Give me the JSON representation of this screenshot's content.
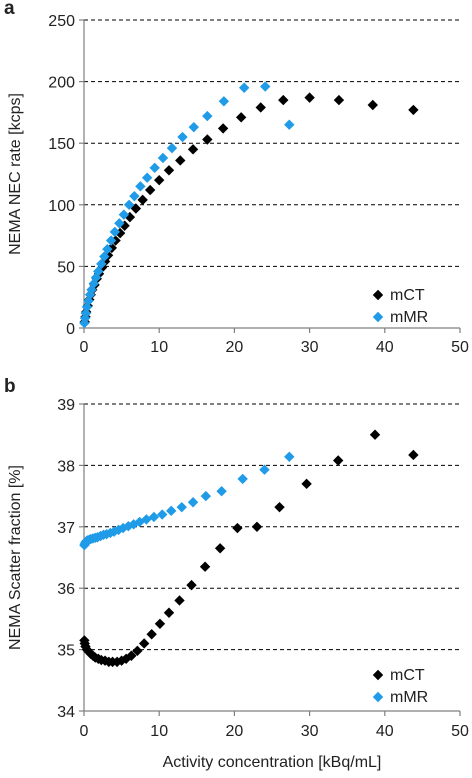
{
  "chart_data": [
    {
      "type": "scatter",
      "panel_label": "a",
      "xlabel": "",
      "ylabel": "NEMA NEC rate [kcps]",
      "xlim": [
        0,
        50
      ],
      "ylim": [
        0,
        250
      ],
      "xticks": [
        "0",
        "10",
        "20",
        "30",
        "40",
        "50"
      ],
      "yticks": [
        "0",
        "50",
        "100",
        "150",
        "200",
        "250"
      ],
      "grid": "horizontal dashed",
      "legend_position": "bottom-right",
      "series": [
        {
          "name": "mCT",
          "color": "#000000",
          "marker": "diamond",
          "x": [
            0.1,
            0.2,
            0.3,
            0.5,
            0.7,
            0.9,
            1.1,
            1.4,
            1.7,
            2.0,
            2.4,
            2.8,
            3.2,
            3.7,
            4.2,
            4.8,
            5.4,
            6.1,
            6.9,
            7.8,
            8.8,
            10.0,
            11.3,
            12.8,
            14.5,
            16.4,
            18.5,
            20.9,
            23.5,
            26.5,
            30.0,
            33.9,
            38.4,
            43.8
          ],
          "y": [
            5,
            9,
            13,
            18,
            23,
            27,
            31,
            35,
            40,
            44,
            49,
            54,
            59,
            65,
            71,
            77,
            83,
            90,
            97,
            104,
            112,
            120,
            128,
            136,
            145,
            153,
            162,
            171,
            179,
            185,
            187,
            185,
            181,
            177
          ]
        },
        {
          "name": "mMR",
          "color": "#1f9be8",
          "marker": "diamond",
          "x": [
            0.05,
            0.15,
            0.25,
            0.4,
            0.6,
            0.8,
            1.0,
            1.3,
            1.6,
            1.9,
            2.3,
            2.7,
            3.1,
            3.6,
            4.1,
            4.7,
            5.3,
            6.0,
            6.7,
            7.5,
            8.4,
            9.4,
            10.5,
            11.7,
            13.1,
            14.6,
            16.4,
            18.6,
            21.3,
            24.1,
            27.3
          ],
          "y": [
            4,
            8,
            12,
            17,
            22,
            27,
            31,
            36,
            41,
            46,
            52,
            58,
            64,
            71,
            78,
            85,
            92,
            100,
            107,
            115,
            122,
            130,
            138,
            146,
            155,
            163,
            172,
            184,
            195,
            196,
            165
          ]
        }
      ]
    },
    {
      "type": "scatter",
      "panel_label": "b",
      "xlabel": "Activity concentration [kBq/mL]",
      "ylabel": "NEMA Scatter fraction [%]",
      "xlim": [
        0,
        50
      ],
      "ylim": [
        34,
        39
      ],
      "xticks": [
        "0",
        "10",
        "20",
        "30",
        "40",
        "50"
      ],
      "yticks": [
        "34",
        "35",
        "36",
        "37",
        "38",
        "39"
      ],
      "grid": "horizontal dashed",
      "legend_position": "bottom-right",
      "series": [
        {
          "name": "mCT",
          "color": "#000000",
          "marker": "diamond",
          "x": [
            0.05,
            0.1,
            0.2,
            0.4,
            0.6,
            0.9,
            1.2,
            1.5,
            1.9,
            2.3,
            2.8,
            3.3,
            3.8,
            4.4,
            5.0,
            5.6,
            6.3,
            7.1,
            8.0,
            9.0,
            10.1,
            11.3,
            12.7,
            14.3,
            16.1,
            18.1,
            20.4,
            23.0,
            26.0,
            29.6,
            33.8,
            38.7,
            43.8
          ],
          "y": [
            35.15,
            35.1,
            35.05,
            35.0,
            34.97,
            34.93,
            34.9,
            34.87,
            34.85,
            34.83,
            34.82,
            34.8,
            34.8,
            34.8,
            34.82,
            34.85,
            34.9,
            34.98,
            35.1,
            35.25,
            35.42,
            35.6,
            35.8,
            36.05,
            36.35,
            36.65,
            36.98,
            37.0,
            37.32,
            37.7,
            38.08,
            38.5,
            38.17
          ]
        },
        {
          "name": "mMR",
          "color": "#1f9be8",
          "marker": "diamond",
          "x": [
            0.05,
            0.1,
            0.2,
            0.35,
            0.5,
            0.7,
            0.9,
            1.2,
            1.5,
            1.8,
            2.2,
            2.6,
            3.0,
            3.5,
            4.0,
            4.6,
            5.2,
            5.9,
            6.6,
            7.4,
            8.3,
            9.3,
            10.4,
            11.6,
            13.0,
            14.5,
            16.2,
            18.3,
            21.1,
            24.0,
            27.3
          ],
          "y": [
            36.7,
            36.72,
            36.75,
            36.77,
            36.78,
            36.79,
            36.8,
            36.81,
            36.82,
            36.83,
            36.85,
            36.87,
            36.88,
            36.9,
            36.92,
            36.95,
            36.98,
            37.01,
            37.04,
            37.08,
            37.12,
            37.16,
            37.2,
            37.26,
            37.32,
            37.4,
            37.5,
            37.58,
            37.78,
            37.93,
            38.14
          ]
        }
      ]
    }
  ]
}
